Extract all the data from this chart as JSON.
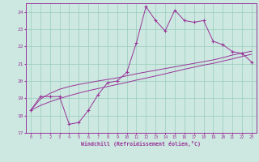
{
  "bg_color": "#cce8e0",
  "grid_color": "#99ccbb",
  "line_color": "#993399",
  "x_data": [
    0,
    1,
    2,
    3,
    4,
    5,
    6,
    7,
    8,
    9,
    10,
    11,
    12,
    13,
    14,
    15,
    16,
    17,
    18,
    19,
    20,
    21,
    22,
    23
  ],
  "y_main": [
    18.3,
    19.1,
    19.1,
    19.1,
    17.5,
    17.6,
    18.3,
    19.2,
    19.9,
    20.0,
    20.5,
    22.2,
    24.3,
    23.5,
    22.9,
    24.1,
    23.5,
    23.4,
    23.5,
    22.3,
    22.1,
    21.7,
    21.6,
    21.1
  ],
  "y_line1": [
    18.3,
    18.95,
    19.28,
    19.52,
    19.68,
    19.8,
    19.9,
    20.0,
    20.09,
    20.18,
    20.3,
    20.42,
    20.52,
    20.62,
    20.72,
    20.82,
    20.92,
    21.02,
    21.12,
    21.22,
    21.35,
    21.5,
    21.62,
    21.72
  ],
  "y_line2": [
    18.3,
    18.58,
    18.8,
    18.98,
    19.15,
    19.3,
    19.44,
    19.56,
    19.68,
    19.8,
    19.92,
    20.05,
    20.17,
    20.29,
    20.42,
    20.55,
    20.68,
    20.8,
    20.92,
    21.02,
    21.15,
    21.28,
    21.42,
    21.55
  ],
  "ylim": [
    17,
    24.5
  ],
  "xlim": [
    -0.5,
    23.5
  ],
  "yticks": [
    17,
    18,
    19,
    20,
    21,
    22,
    23,
    24
  ],
  "xlabel": "Windchill (Refroidissement éolien,°C)"
}
